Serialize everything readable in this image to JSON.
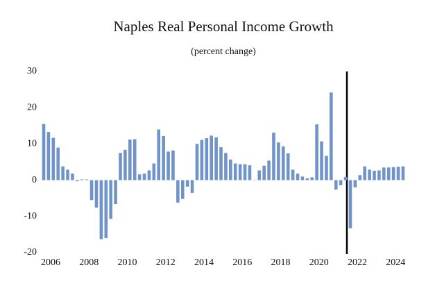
{
  "chart_data": {
    "type": "bar",
    "title": "Naples Real Personal Income Growth",
    "subtitle": "(percent change)",
    "categories": [
      "2006",
      null,
      null,
      null,
      null,
      null,
      null,
      null,
      "2008",
      null,
      null,
      null,
      null,
      null,
      null,
      null,
      "2010",
      null,
      null,
      null,
      null,
      null,
      null,
      null,
      "2012",
      null,
      null,
      null,
      null,
      null,
      null,
      null,
      "2014",
      null,
      null,
      null,
      null,
      null,
      null,
      null,
      "2016",
      null,
      null,
      null,
      null,
      null,
      null,
      null,
      "2018",
      null,
      null,
      null,
      null,
      null,
      null,
      null,
      "2020",
      null,
      null,
      null,
      null,
      null,
      null,
      null,
      "2022",
      null,
      null,
      null,
      null,
      null,
      null,
      null,
      "2024",
      null,
      null,
      null
    ],
    "values": [
      15.5,
      13.3,
      11.7,
      9.0,
      3.8,
      2.9,
      1.8,
      -0.3,
      0.2,
      0.2,
      -5.5,
      -7.6,
      -16.3,
      -16.0,
      -10.7,
      -6.6,
      7.5,
      8.4,
      11.2,
      11.3,
      1.6,
      1.8,
      2.7,
      4.6,
      14.0,
      12.2,
      7.9,
      8.2,
      -6.2,
      -5.2,
      -1.8,
      -3.5,
      10.0,
      11.1,
      11.6,
      12.3,
      11.8,
      9.1,
      7.5,
      5.7,
      4.6,
      4.4,
      4.4,
      4.1,
      0.0,
      2.7,
      4.0,
      5.4,
      13.1,
      10.4,
      9.3,
      7.4,
      2.9,
      1.8,
      1.0,
      0.5,
      0.8,
      15.4,
      10.7,
      6.7,
      24.2,
      -2.6,
      -1.4,
      0.9,
      -13.3,
      -2.0,
      1.4,
      3.8,
      2.9,
      2.6,
      2.7,
      3.5,
      3.5,
      3.6,
      3.7,
      3.8
    ],
    "color": "#7094c9",
    "ylim": [
      -20,
      30
    ],
    "yticks": [
      -20,
      -10,
      0,
      10,
      20,
      30
    ],
    "grid": false
  }
}
